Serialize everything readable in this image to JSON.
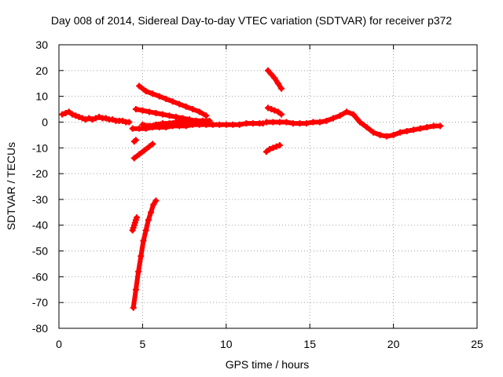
{
  "chart_data": {
    "type": "scatter",
    "title": "Day 008 of 2014, Sidereal Day-to-day VTEC variation (SDTVAR) for receiver p372",
    "xlabel": "GPS time / hours",
    "ylabel": "SDTVAR / TECUs",
    "xlim": [
      0,
      25
    ],
    "ylim": [
      -80,
      30
    ],
    "xticks": [
      0,
      5,
      10,
      15,
      20,
      25
    ],
    "yticks": [
      -80,
      -70,
      -60,
      -50,
      -40,
      -30,
      -20,
      -10,
      0,
      10,
      20,
      30
    ],
    "grid": true,
    "marker": "+",
    "color": "#ff0000",
    "series": [
      {
        "x": [
          0.2,
          0.4,
          0.6,
          0.8,
          1.0,
          1.2,
          1.4,
          1.6,
          1.8,
          2.0,
          2.2,
          2.4,
          2.6,
          2.8,
          3.0,
          3.2,
          3.4,
          3.6,
          3.8,
          4.0,
          4.2
        ],
        "y": [
          3,
          3.5,
          4,
          3,
          2.5,
          2,
          1.5,
          1,
          1.5,
          1,
          1.5,
          2,
          1.5,
          1.5,
          1,
          1,
          0.5,
          0.5,
          0.5,
          0,
          0
        ]
      },
      {
        "x": [
          4.4,
          4.8,
          5.2,
          5.6,
          6.0,
          6.4,
          6.8,
          7.2,
          7.6,
          8.0,
          8.4,
          8.8,
          9.2,
          9.6,
          10.0,
          10.4,
          10.8,
          11.2,
          11.6,
          12.0,
          12.2
        ],
        "y": [
          -2.5,
          -2.5,
          -2.5,
          -2,
          -2,
          -2,
          -1.5,
          -1.5,
          -1.5,
          -1,
          -1,
          -1,
          -1,
          -1,
          -1,
          -1,
          -1,
          -0.5,
          -0.5,
          -0.5,
          -0.5
        ]
      },
      {
        "x": [
          5.0,
          5.4,
          5.8,
          6.2,
          6.6,
          7.0,
          7.4,
          7.8,
          8.2,
          8.6,
          9.0
        ],
        "y": [
          -1,
          -1.5,
          -1,
          -0.5,
          -0.5,
          0,
          0,
          0.5,
          0.5,
          0.5,
          0.5
        ]
      },
      {
        "x": [
          4.6,
          5.0,
          5.4,
          5.8,
          6.2,
          6.6,
          7.0,
          7.4,
          7.8,
          8.2,
          8.6
        ],
        "y": [
          5,
          4.5,
          4,
          3.5,
          3,
          2.5,
          2,
          1.5,
          1,
          0.5,
          0
        ]
      },
      {
        "x": [
          4.8,
          5.2,
          5.6,
          6.0,
          6.4,
          6.8,
          7.2,
          7.6,
          8.0,
          8.4,
          8.8
        ],
        "y": [
          14,
          12,
          11,
          10,
          9,
          8,
          7,
          6,
          5,
          4,
          2.5
        ]
      },
      {
        "x": [
          4.5,
          4.8,
          5.1,
          5.4,
          5.6
        ],
        "y": [
          -14,
          -12.5,
          -11,
          -9.5,
          -8.5
        ]
      },
      {
        "x": [
          4.5,
          4.6
        ],
        "y": [
          -7.5,
          -7
        ]
      },
      {
        "x": [
          4.4,
          4.45,
          4.5,
          4.55,
          4.6,
          4.65
        ],
        "y": [
          -42,
          -41,
          -40,
          -39,
          -38,
          -37
        ]
      },
      {
        "x": [
          4.45,
          4.6,
          4.75,
          4.9,
          5.05,
          5.2,
          5.35,
          5.5,
          5.65,
          5.8
        ],
        "y": [
          -72,
          -65,
          -58,
          -52,
          -46,
          -42,
          -38,
          -35,
          -32,
          -30.5
        ]
      },
      {
        "x": [
          12.5,
          12.7,
          12.9,
          13.1,
          13.3
        ],
        "y": [
          20,
          18.5,
          17,
          15,
          13
        ]
      },
      {
        "x": [
          12.5,
          12.7,
          12.9,
          13.1,
          13.3
        ],
        "y": [
          5.5,
          5,
          4.5,
          4,
          3
        ]
      },
      {
        "x": [
          12.4,
          12.6,
          12.8,
          13.0,
          13.2
        ],
        "y": [
          -11.5,
          -10.5,
          -10,
          -9.5,
          -9
        ]
      },
      {
        "x": [
          12.4,
          12.8,
          13.2,
          13.6,
          14.0,
          14.4,
          14.8,
          15.2,
          15.6,
          16.0,
          16.4,
          16.8,
          17.2,
          17.6,
          18.0,
          18.4,
          18.8,
          19.2,
          19.6,
          20.0,
          20.4,
          20.8,
          21.2,
          21.6,
          22.0,
          22.4,
          22.8
        ],
        "y": [
          0,
          0,
          0,
          0,
          -0.5,
          -0.5,
          -0.5,
          0,
          0,
          0.5,
          1.5,
          2.5,
          4,
          3,
          0,
          -2,
          -4,
          -5,
          -5.5,
          -5,
          -4,
          -3.5,
          -3,
          -2.5,
          -2,
          -1.5,
          -1.5
        ]
      }
    ]
  }
}
